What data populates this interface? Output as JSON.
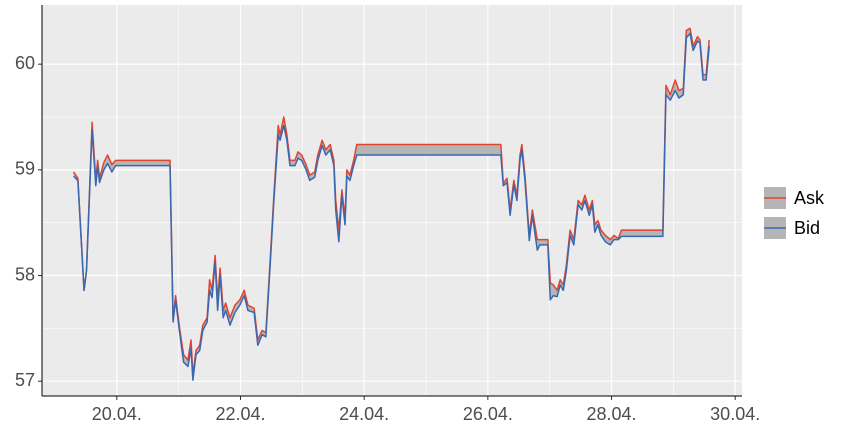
{
  "chart_data": {
    "type": "ribbon-line",
    "x": [
      19.3,
      19.37,
      19.47,
      19.51,
      19.6,
      19.66,
      19.69,
      19.72,
      19.79,
      19.85,
      19.92,
      19.98,
      20.86,
      20.91,
      20.95,
      21.02,
      21.08,
      21.15,
      21.2,
      21.23,
      21.28,
      21.34,
      21.39,
      21.46,
      21.5,
      21.54,
      21.59,
      21.63,
      21.67,
      21.72,
      21.76,
      21.83,
      21.91,
      21.99,
      22.06,
      22.12,
      22.22,
      22.28,
      22.35,
      22.41,
      22.48,
      22.54,
      22.61,
      22.64,
      22.7,
      22.75,
      22.8,
      22.88,
      22.93,
      22.99,
      23.06,
      23.12,
      23.2,
      23.25,
      23.32,
      23.38,
      23.45,
      23.51,
      23.54,
      23.59,
      23.64,
      23.69,
      23.72,
      23.77,
      23.83,
      23.88,
      26.21,
      26.25,
      26.31,
      26.36,
      26.42,
      26.47,
      26.52,
      26.55,
      26.6,
      26.67,
      26.72,
      26.8,
      26.84,
      26.93,
      26.97,
      27.01,
      27.06,
      27.12,
      27.17,
      27.22,
      27.27,
      27.33,
      27.39,
      27.46,
      27.52,
      27.57,
      27.64,
      27.69,
      27.73,
      27.78,
      27.83,
      27.9,
      27.98,
      28.04,
      28.11,
      28.16,
      28.83,
      28.88,
      28.95,
      29.03,
      29.09,
      29.16,
      29.21,
      29.27,
      29.32,
      29.39,
      29.43,
      29.48,
      29.53,
      29.58
    ],
    "series": [
      {
        "name": "Ask",
        "color": "#e0452f",
        "values": [
          58.98,
          58.92,
          57.86,
          58.05,
          59.45,
          58.9,
          59.09,
          58.92,
          59.07,
          59.14,
          59.05,
          59.09,
          59.09,
          57.58,
          57.81,
          57.48,
          57.25,
          57.2,
          57.39,
          57.06,
          57.29,
          57.34,
          57.53,
          57.6,
          57.96,
          57.86,
          58.19,
          57.77,
          58.07,
          57.67,
          57.74,
          57.6,
          57.72,
          57.77,
          57.86,
          57.72,
          57.69,
          57.39,
          57.48,
          57.46,
          58.15,
          58.76,
          59.42,
          59.33,
          59.5,
          59.33,
          59.09,
          59.09,
          59.17,
          59.14,
          59.05,
          58.95,
          58.98,
          59.14,
          59.28,
          59.19,
          59.24,
          59.09,
          58.71,
          58.43,
          58.81,
          58.54,
          59.0,
          58.95,
          59.09,
          59.24,
          59.24,
          58.87,
          58.92,
          58.62,
          58.9,
          58.76,
          59.14,
          59.24,
          58.95,
          58.38,
          58.62,
          58.34,
          58.34,
          58.34,
          58.34,
          57.93,
          57.91,
          57.86,
          57.96,
          57.91,
          58.1,
          58.43,
          58.34,
          58.71,
          58.67,
          58.76,
          58.62,
          58.71,
          58.48,
          58.52,
          58.43,
          58.38,
          58.34,
          58.38,
          58.35,
          58.43,
          58.43,
          59.8,
          59.71,
          59.85,
          59.75,
          59.77,
          60.32,
          60.34,
          60.17,
          60.26,
          60.23,
          59.9,
          59.9,
          60.23
        ]
      },
      {
        "name": "Bid",
        "color": "#3a68b0",
        "values": [
          58.94,
          58.9,
          57.86,
          58.05,
          59.38,
          58.85,
          59.04,
          58.88,
          59.0,
          59.06,
          58.98,
          59.04,
          59.04,
          57.56,
          57.77,
          57.44,
          57.18,
          57.14,
          57.31,
          57.01,
          57.25,
          57.29,
          57.48,
          57.56,
          57.86,
          57.79,
          58.13,
          57.67,
          58.0,
          57.6,
          57.67,
          57.53,
          57.65,
          57.72,
          57.81,
          57.67,
          57.65,
          57.34,
          57.44,
          57.42,
          58.1,
          58.71,
          59.33,
          59.28,
          59.42,
          59.28,
          59.04,
          59.04,
          59.11,
          59.09,
          59.0,
          58.9,
          58.93,
          59.09,
          59.23,
          59.14,
          59.19,
          59.04,
          58.62,
          58.32,
          58.76,
          58.48,
          58.94,
          58.9,
          59.04,
          59.14,
          59.14,
          58.85,
          58.88,
          58.57,
          58.86,
          58.71,
          59.09,
          59.19,
          58.9,
          58.33,
          58.57,
          58.24,
          58.29,
          58.29,
          58.29,
          57.77,
          57.81,
          57.8,
          57.91,
          57.86,
          58.05,
          58.38,
          58.29,
          58.67,
          58.62,
          58.71,
          58.57,
          58.67,
          58.41,
          58.48,
          58.38,
          58.32,
          58.29,
          58.34,
          58.34,
          58.37,
          58.37,
          59.71,
          59.66,
          59.75,
          59.68,
          59.71,
          60.25,
          60.29,
          60.13,
          60.22,
          60.2,
          59.85,
          59.85,
          60.17
        ]
      }
    ],
    "ribbon_color": "#b5b5b5",
    "xlim": [
      18.79,
      30.11
    ],
    "ylim": [
      56.86,
      60.56
    ],
    "xticks": [
      {
        "value": 20,
        "label": "20.04."
      },
      {
        "value": 22,
        "label": "22.04."
      },
      {
        "value": 24,
        "label": "24.04."
      },
      {
        "value": 26,
        "label": "26.04."
      },
      {
        "value": 28,
        "label": "28.04."
      },
      {
        "value": 30,
        "label": "30.04."
      }
    ],
    "yticks": [
      57,
      58,
      59,
      60
    ],
    "grid": true,
    "legend": "right"
  }
}
